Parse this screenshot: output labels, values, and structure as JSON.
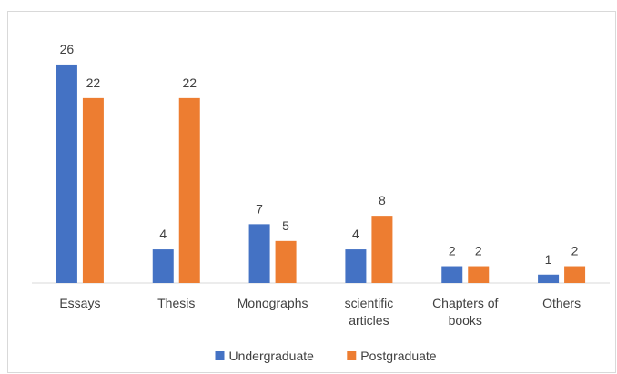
{
  "chart_data": {
    "type": "bar",
    "categories": [
      "Essays",
      "Thesis",
      "Monographs",
      "scientific articles",
      "Chapters of books",
      "Others"
    ],
    "series": [
      {
        "name": "Undergraduate",
        "color": "#4472c4",
        "values": [
          26,
          4,
          7,
          4,
          2,
          1
        ]
      },
      {
        "name": "Postgraduate",
        "color": "#ed7d31",
        "values": [
          22,
          22,
          5,
          8,
          2,
          2
        ]
      }
    ],
    "ylim": [
      0,
      30
    ],
    "grid": false,
    "legend": "bottom"
  }
}
